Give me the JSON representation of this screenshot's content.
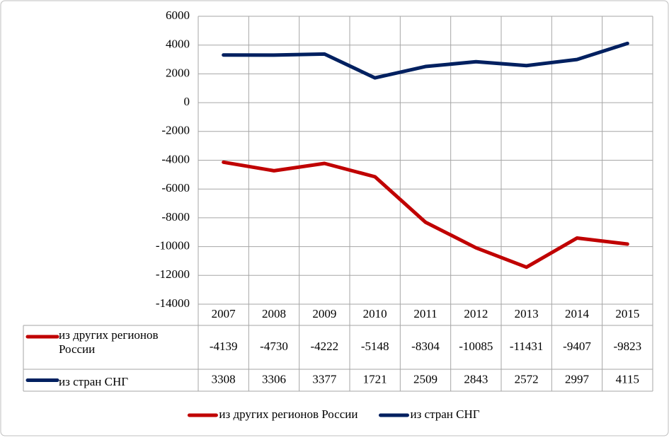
{
  "chart_data": {
    "type": "line",
    "categories": [
      "2007",
      "2008",
      "2009",
      "2010",
      "2011",
      "2012",
      "2013",
      "2014",
      "2015"
    ],
    "series": [
      {
        "name": "из других регионов России",
        "color": "#c00000",
        "values": [
          -4139,
          -4730,
          -4222,
          -5148,
          -8304,
          -10085,
          -11431,
          -9407,
          -9823
        ]
      },
      {
        "name": "из стран СНГ",
        "color": "#002060",
        "values": [
          3308,
          3306,
          3377,
          1721,
          2509,
          2843,
          2572,
          2997,
          4115
        ]
      }
    ],
    "ylim": [
      -14000,
      6000
    ],
    "yticks": [
      -14000,
      -12000,
      -10000,
      -8000,
      -6000,
      -4000,
      -2000,
      0,
      2000,
      4000,
      6000
    ],
    "grid": true,
    "legend": "bottom",
    "data_table": true
  }
}
